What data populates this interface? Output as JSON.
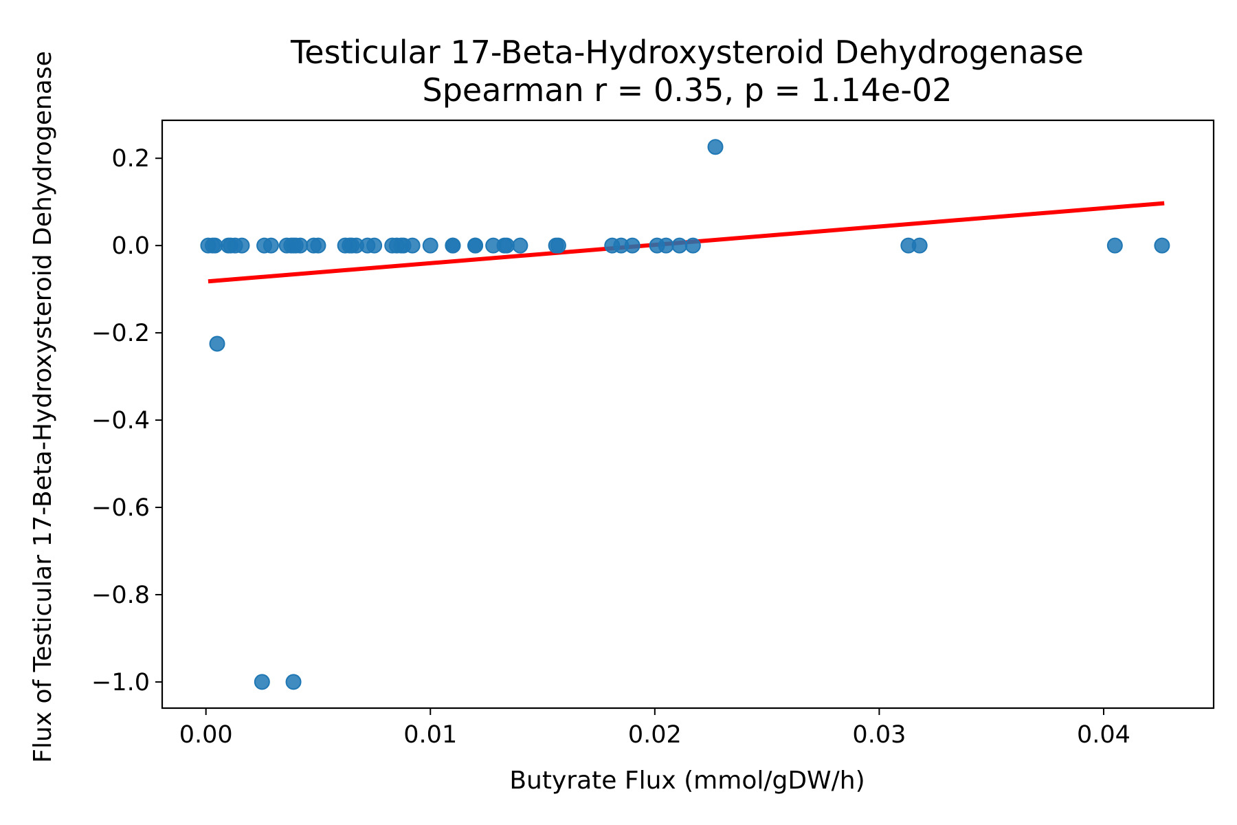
{
  "chart_data": {
    "type": "scatter",
    "title": "Testicular 17-Beta-Hydroxysteroid Dehydrogenase",
    "subtitle": "Spearman r = 0.35, p = 1.14e-02",
    "xlabel": "Butyrate Flux (mmol/gDW/h)",
    "ylabel": "Flux of Testicular 17-Beta-Hydroxysteroid Dehydrogenase",
    "xlim": [
      -0.00195,
      0.0449
    ],
    "ylim": [
      -1.06,
      0.287
    ],
    "xticks": [
      0.0,
      0.01,
      0.02,
      0.03,
      0.04
    ],
    "xtick_labels": [
      "0.00",
      "0.01",
      "0.02",
      "0.03",
      "0.04"
    ],
    "yticks": [
      0.2,
      0.0,
      -0.2,
      -0.4,
      -0.6,
      -0.8,
      -1.0
    ],
    "ytick_labels": [
      "0.2",
      "0.0",
      "−0.2",
      "−0.4",
      "−0.6",
      "−0.8",
      "−1.0"
    ],
    "grid": false,
    "colors": {
      "points": "#1f77b4",
      "fit_line": "#ff0000"
    },
    "points": {
      "x": [
        0.0001,
        0.0003,
        0.0004,
        0.001,
        0.0011,
        0.0013,
        0.0016,
        0.0026,
        0.0029,
        0.0036,
        0.0038,
        0.0039,
        0.004,
        0.0042,
        0.0048,
        0.005,
        0.0062,
        0.0064,
        0.0065,
        0.0067,
        0.0072,
        0.0075,
        0.0083,
        0.0085,
        0.0087,
        0.0088,
        0.0092,
        0.01,
        0.011,
        0.011,
        0.012,
        0.012,
        0.0128,
        0.0133,
        0.0134,
        0.014,
        0.0156,
        0.0157,
        0.0181,
        0.0185,
        0.019,
        0.0201,
        0.0205,
        0.0211,
        0.0217,
        0.0313,
        0.0318,
        0.0405,
        0.0426,
        0.0227,
        0.0005,
        0.0025,
        0.0039
      ],
      "y": [
        0,
        0,
        0,
        0,
        0,
        0,
        0,
        0,
        0,
        0,
        0,
        0,
        0,
        0,
        0,
        0,
        0,
        0,
        0,
        0,
        0,
        0,
        0,
        0,
        0,
        0,
        0,
        0,
        0,
        0,
        0,
        0,
        0,
        0,
        0,
        0,
        0,
        0,
        0,
        0,
        0,
        0,
        0,
        0,
        0,
        0,
        0,
        0,
        0,
        0.226,
        -0.225,
        -1.0,
        -1.0
      ]
    },
    "fit_line": {
      "x": [
        0.0001,
        0.0427
      ],
      "y": [
        -0.082,
        0.097
      ]
    }
  }
}
